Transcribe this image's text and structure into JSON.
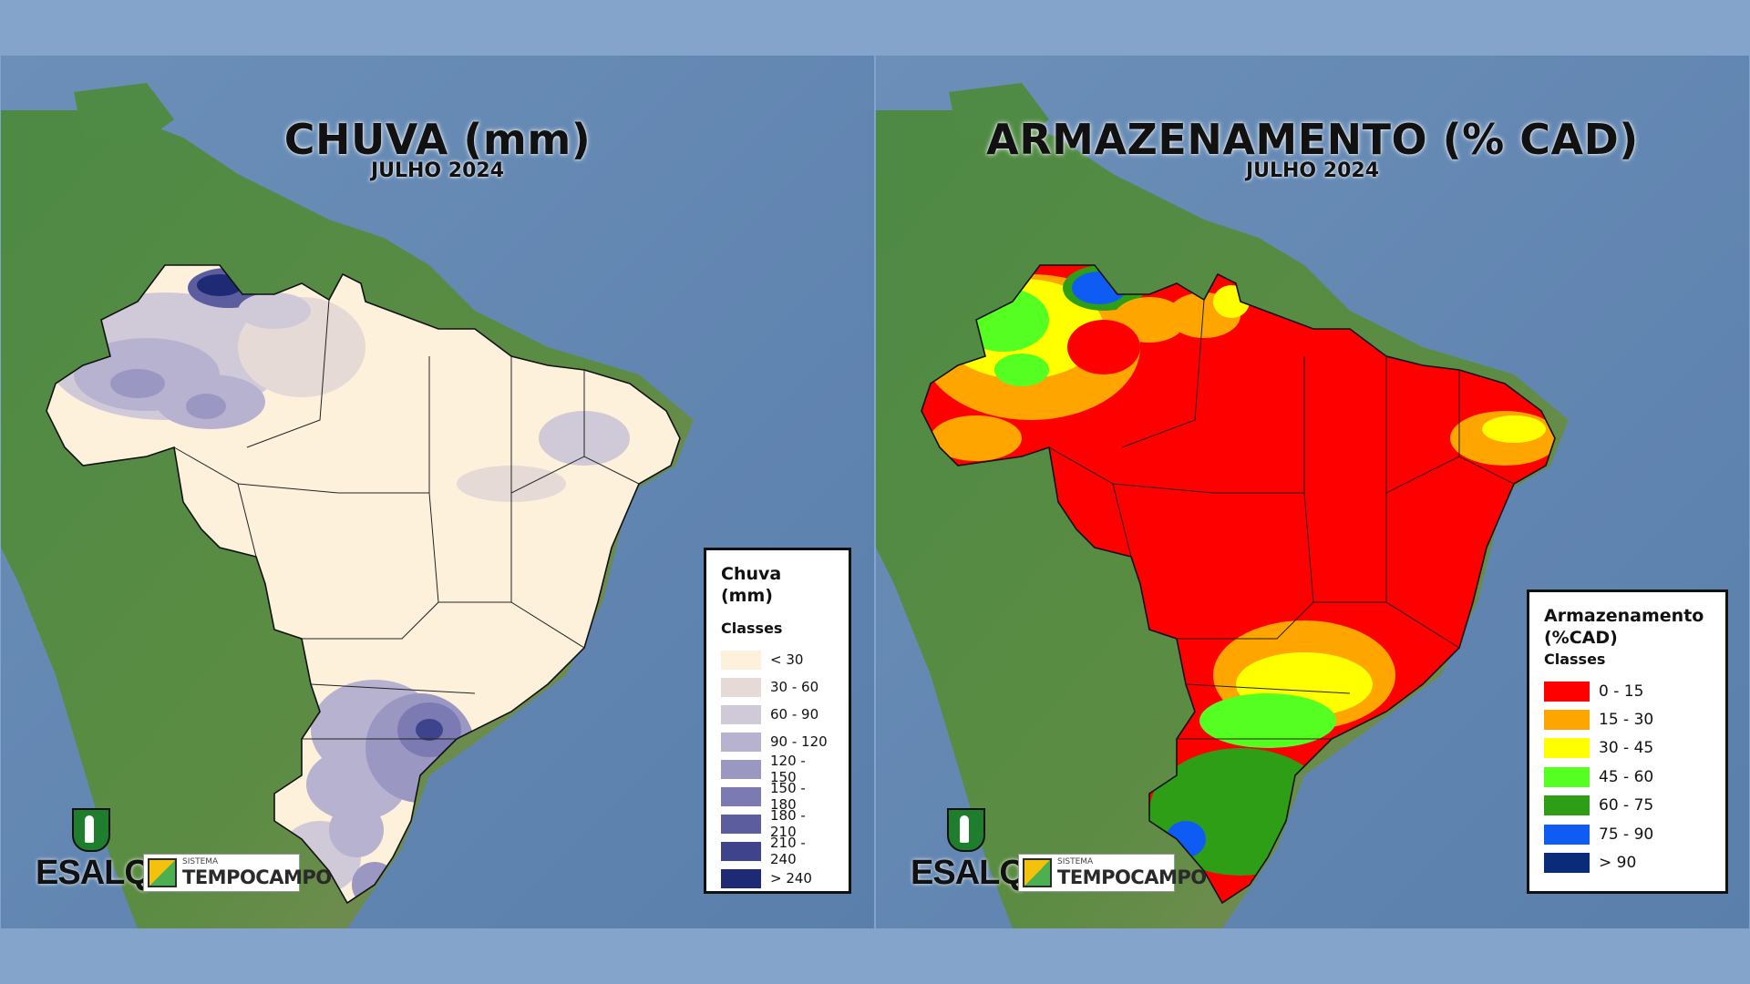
{
  "panels": [
    {
      "title": "CHUVA (mm)",
      "subtitle": "JULHO 2024",
      "legend": {
        "title": "Chuva (mm)",
        "classes_label": "Classes",
        "items": [
          {
            "label": "< 30",
            "color": "#fdf1dc"
          },
          {
            "label": "30 - 60",
            "color": "#e5dad6"
          },
          {
            "label": "60 - 90",
            "color": "#cfc9d8"
          },
          {
            "label": "90 - 120",
            "color": "#b6b2d0"
          },
          {
            "label": "120 - 150",
            "color": "#9a97c2"
          },
          {
            "label": "150 - 180",
            "color": "#7b7ab2"
          },
          {
            "label": "180 - 210",
            "color": "#5c5d9f"
          },
          {
            "label": "210 - 240",
            "color": "#3f438b"
          },
          {
            "label": "> 240",
            "color": "#1f2a75"
          }
        ]
      }
    },
    {
      "title": "ARMAZENAMENTO (% CAD)",
      "subtitle": "JULHO 2024",
      "legend": {
        "title": "Armazenamento (%CAD)",
        "classes_label": "Classes",
        "items": [
          {
            "label": "0 - 15",
            "color": "#ff0000"
          },
          {
            "label": "15 - 30",
            "color": "#ffa500"
          },
          {
            "label": "30 - 45",
            "color": "#ffff00"
          },
          {
            "label": "45 - 60",
            "color": "#55ff22"
          },
          {
            "label": "60 - 75",
            "color": "#2e9e16"
          },
          {
            "label": "75 - 90",
            "color": "#0f5cf5"
          },
          {
            "label": "> 90",
            "color": "#0a2a7a"
          }
        ]
      }
    }
  ],
  "logos": {
    "esalq": "ESALQ",
    "tempocampo_small": "SISTEMA",
    "tempocampo_name": "TEMPOCAMPO"
  }
}
